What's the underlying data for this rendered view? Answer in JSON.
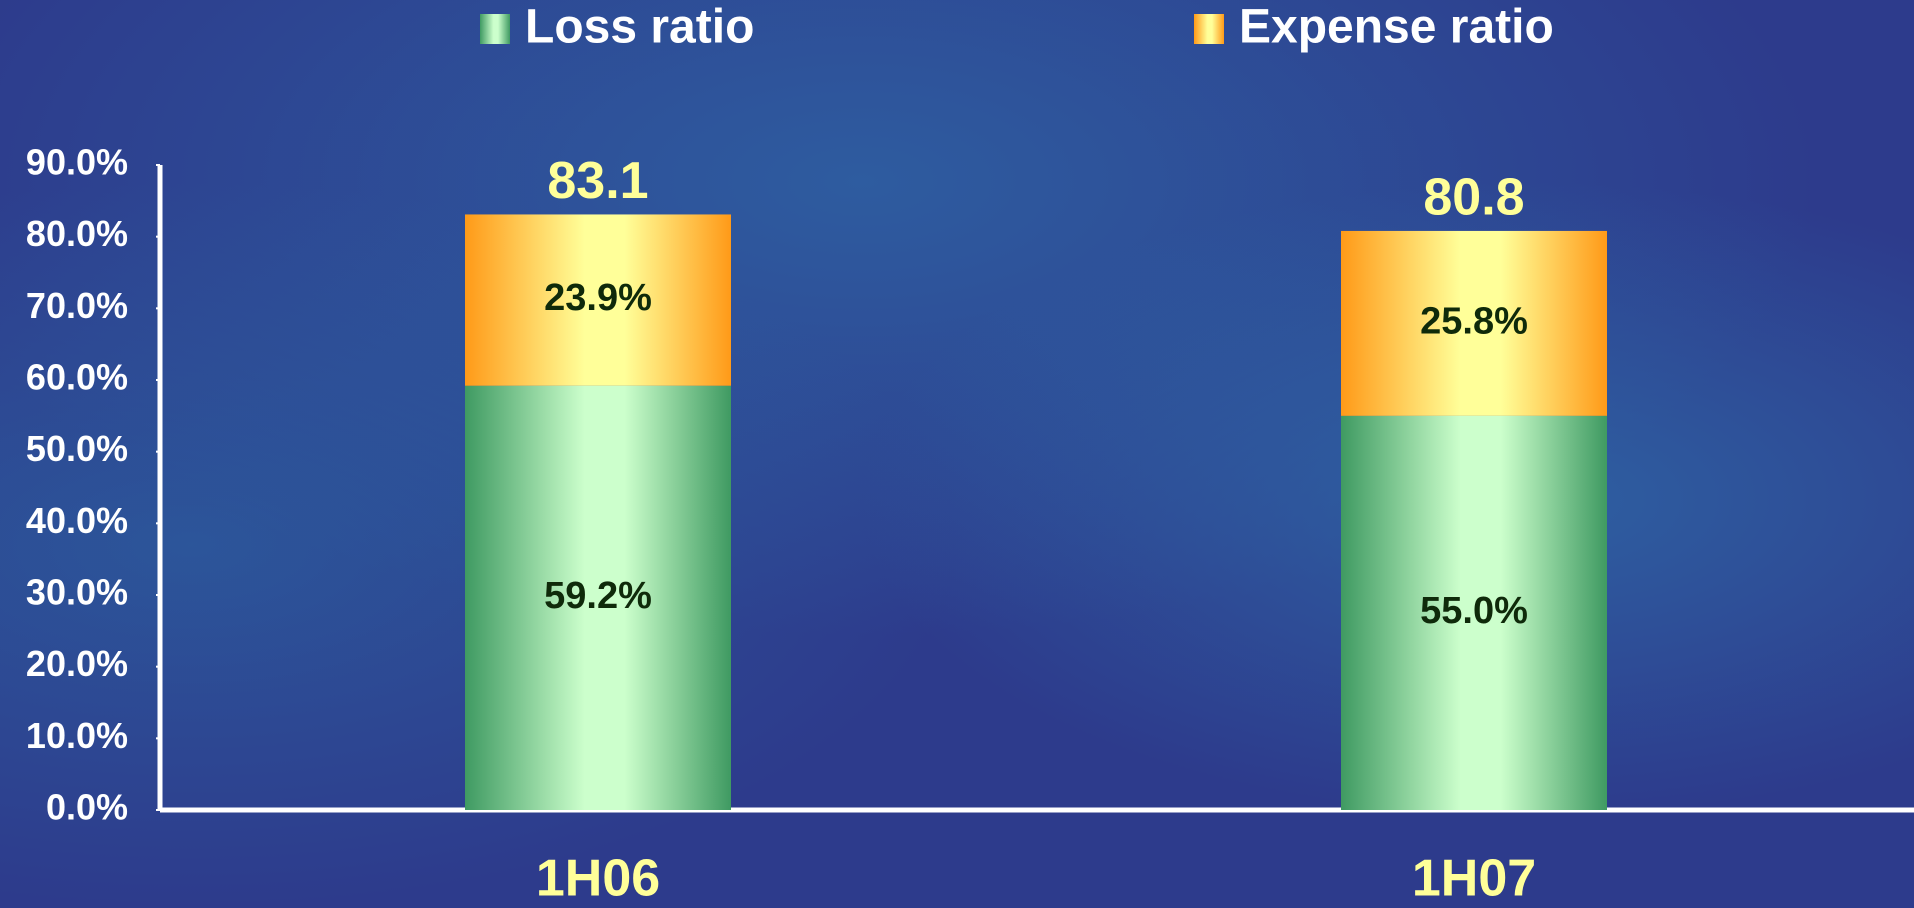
{
  "chart_data": {
    "type": "stacked_bar",
    "categories": [
      "1H06",
      "1H07"
    ],
    "series": [
      {
        "name": "Loss ratio",
        "color": "#4aa868",
        "values": [
          59.2,
          55.0
        ],
        "value_labels": [
          "59.2%",
          "55.0%"
        ]
      },
      {
        "name": "Expense ratio",
        "color": "#ffa020",
        "values": [
          23.9,
          25.8
        ],
        "value_labels": [
          "23.9%",
          "25.8%"
        ]
      }
    ],
    "totals": [
      83.1,
      80.8
    ],
    "ylim": [
      0,
      90
    ],
    "yticks": [
      {
        "value": 0,
        "label": "0.0%"
      },
      {
        "value": 10,
        "label": "10.0%"
      },
      {
        "value": 20,
        "label": "20.0%"
      },
      {
        "value": 30,
        "label": "30.0%"
      },
      {
        "value": 40,
        "label": "40.0%"
      },
      {
        "value": 50,
        "label": "50.0%"
      },
      {
        "value": 60,
        "label": "60.0%"
      },
      {
        "value": 70,
        "label": "70.0%"
      },
      {
        "value": 80,
        "label": "80.0%"
      },
      {
        "value": 90,
        "label": "90.0%"
      }
    ],
    "grid": false
  }
}
